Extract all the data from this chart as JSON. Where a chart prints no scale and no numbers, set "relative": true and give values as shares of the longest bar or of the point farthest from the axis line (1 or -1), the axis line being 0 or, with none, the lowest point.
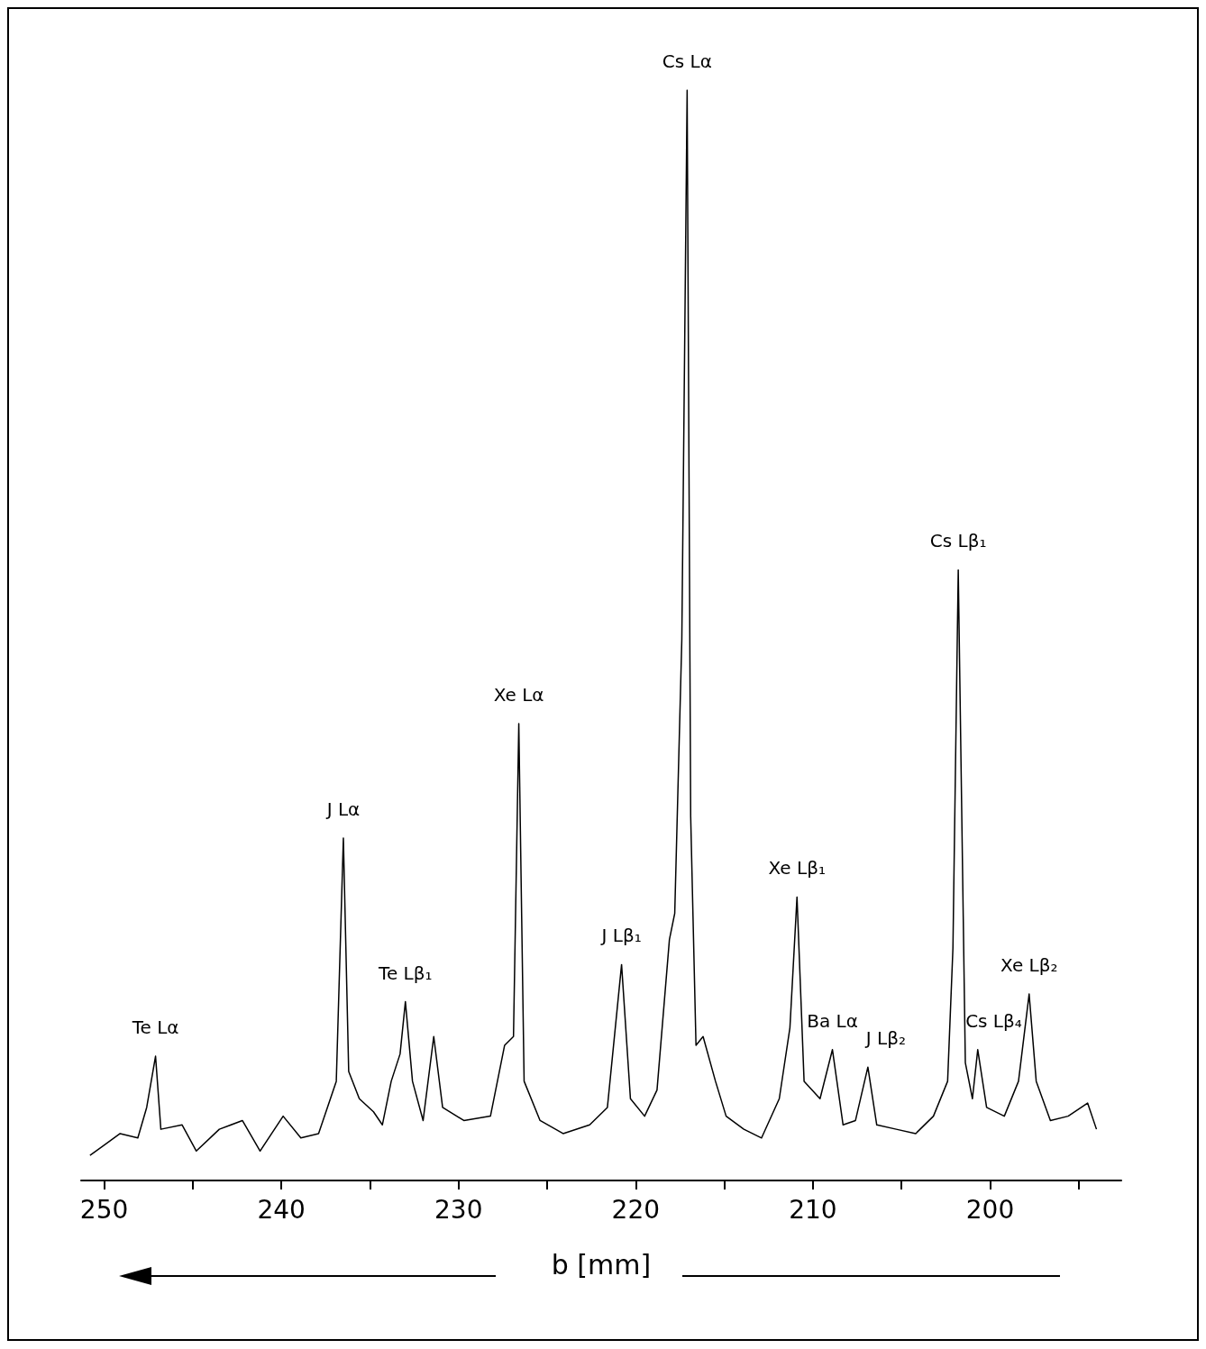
{
  "chart_data": {
    "type": "line",
    "relative": true,
    "xlabel": "b [mm]",
    "color": "#000000",
    "xlim": [
      251.3,
      192.6
    ],
    "xticks": [
      250,
      {
        "value": 245,
        "label": null
      },
      240,
      {
        "value": 235,
        "label": null
      },
      230,
      {
        "value": 225,
        "label": null
      },
      220,
      {
        "value": 215,
        "label": null
      },
      210,
      {
        "value": 205,
        "label": null
      },
      200,
      {
        "value": 195,
        "label": null
      }
    ],
    "x": [
      250.8,
      249.1,
      248.1,
      247.6,
      247.1,
      246.8,
      245.6,
      244.8,
      243.5,
      242.2,
      241.2,
      239.9,
      238.9,
      237.9,
      237.4,
      236.9,
      236.5,
      236.2,
      235.6,
      234.8,
      234.3,
      233.8,
      233.3,
      233.0,
      232.6,
      232.0,
      231.4,
      230.9,
      229.7,
      228.2,
      227.4,
      226.9,
      226.6,
      226.3,
      225.4,
      224.1,
      222.6,
      221.6,
      220.8,
      220.3,
      219.5,
      218.8,
      218.1,
      217.8,
      217.4,
      217.1,
      216.9,
      216.6,
      216.2,
      215.5,
      214.9,
      213.9,
      212.9,
      211.9,
      211.3,
      210.9,
      210.5,
      209.6,
      208.9,
      208.3,
      207.6,
      206.9,
      206.4,
      205.3,
      204.2,
      203.2,
      202.4,
      202.1,
      201.8,
      201.4,
      201.0,
      200.7,
      200.2,
      199.2,
      198.4,
      197.8,
      197.4,
      196.6,
      195.6,
      194.5,
      194.0
    ],
    "values": [
      0.023,
      0.043,
      0.039,
      0.067,
      0.114,
      0.047,
      0.051,
      0.027,
      0.047,
      0.055,
      0.027,
      0.059,
      0.039,
      0.043,
      0.067,
      0.091,
      0.314,
      0.1,
      0.075,
      0.063,
      0.051,
      0.091,
      0.116,
      0.164,
      0.091,
      0.055,
      0.132,
      0.067,
      0.055,
      0.059,
      0.124,
      0.132,
      0.419,
      0.091,
      0.055,
      0.043,
      0.051,
      0.067,
      0.198,
      0.075,
      0.059,
      0.083,
      0.221,
      0.245,
      0.496,
      1,
      0.334,
      0.124,
      0.132,
      0.091,
      0.059,
      0.047,
      0.039,
      0.075,
      0.14,
      0.26,
      0.091,
      0.075,
      0.12,
      0.051,
      0.055,
      0.104,
      0.051,
      0.047,
      0.043,
      0.059,
      0.091,
      0.213,
      0.56,
      0.108,
      0.075,
      0.12,
      0.067,
      0.059,
      0.091,
      0.171,
      0.091,
      0.055,
      0.059,
      0.071,
      0.047
    ],
    "annotations": [
      {
        "text": "Te Lα",
        "x": 247.1,
        "y": 0.114
      },
      {
        "text": "J Lα",
        "x": 236.5,
        "y": 0.314
      },
      {
        "text": "Te Lβ₁",
        "x": 233.0,
        "y": 0.164
      },
      {
        "text": "Xe Lα",
        "x": 226.6,
        "y": 0.419
      },
      {
        "text": "J Lβ₁",
        "x": 220.8,
        "y": 0.198
      },
      {
        "text": "Cs Lα",
        "x": 217.1,
        "y": 1
      },
      {
        "text": "Xe Lβ₁",
        "x": 210.9,
        "y": 0.26
      },
      {
        "text": "Ba Lα",
        "x": 208.9,
        "y": 0.12
      },
      {
        "text": "J Lβ₂",
        "x": 206.9,
        "y": 0.104
      },
      {
        "text": "Cs Lβ₁",
        "x": 201.8,
        "y": 0.56
      },
      {
        "text": "Cs Lβ₄",
        "x": 200.7,
        "y": 0.12
      },
      {
        "text": "Xe Lβ₂",
        "x": 197.8,
        "y": 0.171
      }
    ]
  }
}
